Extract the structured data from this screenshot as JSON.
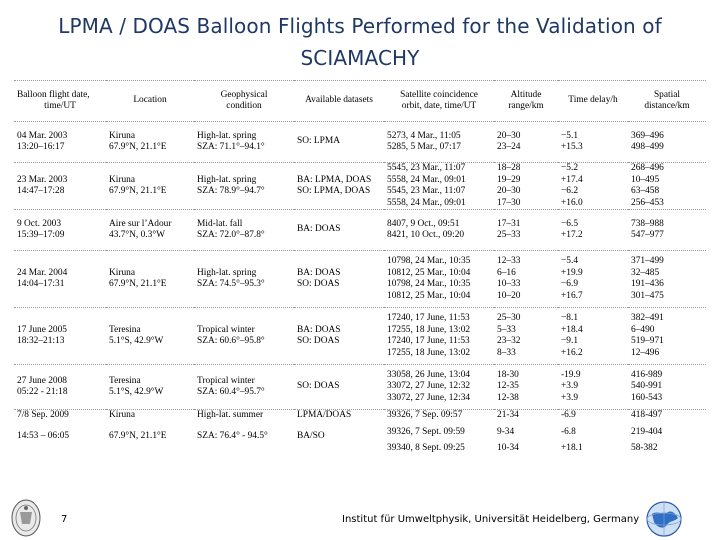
{
  "title_line1": "LPMA / DOAS Balloon Flights Performed for the Validation of",
  "title_line2": "SCIAMACHY",
  "headers": [
    [
      "Balloon flight date,",
      "time/UT"
    ],
    [
      "Location"
    ],
    [
      "Geophysical",
      "condition"
    ],
    [
      "Available datasets"
    ],
    [
      "Satellite coincidence",
      "orbit, date, time/UT"
    ],
    [
      "Altitude",
      "range/km"
    ],
    [
      "Time delay/h"
    ],
    [
      "Spatial",
      "distance/km"
    ]
  ],
  "rows": [
    {
      "date": [
        "04 Mar. 2003",
        "13:20–16:17"
      ],
      "location": [
        "Kiruna",
        "67.9°N, 21.1°E"
      ],
      "condition": [
        "High-lat. spring",
        "SZA: 71.1°–94.1°"
      ],
      "datasets": [
        "SO: LPMA"
      ],
      "coincidence": [
        "5273, 4 Mar., 11:05",
        "5285, 5 Mar., 07:17"
      ],
      "altitude": [
        "20–30",
        "23–24"
      ],
      "delay": [
        "−5.1",
        "+15.3"
      ],
      "distance": [
        "369–496",
        "498–499"
      ]
    },
    {
      "date": [
        "23 Mar. 2003",
        "14:47–17:28"
      ],
      "location": [
        "Kiruna",
        "67.9°N, 21.1°E"
      ],
      "condition": [
        "High-lat. spring",
        "SZA: 78.9°–94.7°"
      ],
      "datasets": [
        "BA: LPMA, DOAS",
        "SO: LPMA, DOAS"
      ],
      "coincidence": [
        "5545, 23 Mar., 11:07",
        "5558, 24 Mar., 09:01",
        "5545, 23 Mar., 11:07",
        "5558, 24 Mar., 09:01"
      ],
      "altitude": [
        "18–28",
        "19–29",
        "20–30",
        "17–30"
      ],
      "delay": [
        "−5.2",
        "+17.4",
        "−6.2",
        "+16.0"
      ],
      "distance": [
        "268–496",
        "10–495",
        "63–458",
        "256–453"
      ]
    },
    {
      "date": [
        "9 Oct. 2003",
        "15:39–17:09"
      ],
      "location": [
        "Aire sur l’Adour",
        "43.7°N, 0.3°W"
      ],
      "condition": [
        "Mid-lat. fall",
        "SZA: 72.0°–87.8°"
      ],
      "datasets": [
        "BA: DOAS"
      ],
      "coincidence": [
        "8407, 9 Oct., 09:51",
        "8421, 10 Oct., 09:20"
      ],
      "altitude": [
        "17–31",
        "25–33"
      ],
      "delay": [
        "−6.5",
        "+17.2"
      ],
      "distance": [
        "738–988",
        "547–977"
      ]
    },
    {
      "date": [
        "24 Mar. 2004",
        "14:04–17:31"
      ],
      "location": [
        "Kiruna",
        "67.9°N, 21.1°E"
      ],
      "condition": [
        "High-lat. spring",
        "SZA: 74.5°–95.3°"
      ],
      "datasets": [
        "BA: DOAS",
        "SO: DOAS"
      ],
      "coincidence": [
        "10798, 24 Mar., 10:35",
        "10812, 25 Mar., 10:04",
        "10798, 24 Mar., 10:35",
        "10812, 25 Mar., 10:04"
      ],
      "altitude": [
        "12–33",
        "6–16",
        "10–33",
        "10–20"
      ],
      "delay": [
        "−5.4",
        "+19.9",
        "−6.9",
        "+16.7"
      ],
      "distance": [
        "371–499",
        "32–485",
        "191–436",
        "301–475"
      ]
    },
    {
      "date": [
        "17 June 2005",
        "18:32–21:13"
      ],
      "location": [
        "Teresina",
        "5.1°S, 42.9°W"
      ],
      "condition": [
        "Tropical winter",
        "SZA: 60.6°–95.8°"
      ],
      "datasets": [
        "BA: DOAS",
        "SO: DOAS"
      ],
      "coincidence": [
        "17240, 17 June, 11:53",
        "17255, 18 June, 13:02",
        "17240, 17 June, 11:53",
        "17255, 18 June, 13:02"
      ],
      "altitude": [
        "25–30",
        "5–33",
        "23–32",
        "8–33"
      ],
      "delay": [
        "−8.1",
        "+18.4",
        "−9.1",
        "+16.2"
      ],
      "distance": [
        "382–491",
        "6–490",
        "519–971",
        "12–496"
      ]
    },
    {
      "date": [
        "27 June 2008",
        "05:22 - 21:18"
      ],
      "location": [
        "Teresina",
        "5.1°S, 42.9°W"
      ],
      "condition": [
        "Tropical winter",
        "SZA: 60.4°–95.7°"
      ],
      "datasets": [
        "SO: DOAS"
      ],
      "coincidence": [
        "33058, 26 June, 13:04",
        "33072, 27 June, 12:32",
        "33072, 27 June, 12:34"
      ],
      "altitude": [
        "18-30",
        "12-35",
        "12-38"
      ],
      "delay": [
        "-19.9",
        "+3.9",
        "+3.9"
      ],
      "distance": [
        "416-989",
        "540-991",
        "160-543"
      ]
    },
    {
      "date": [
        "7/8 Sep. 2009",
        "14:53 – 06:05"
      ],
      "location": [
        "Kiruna",
        "67.9°N, 21.1°E"
      ],
      "condition": [
        "High-lat. summer",
        "SZA: 76.4° - 94.5°"
      ],
      "datasets": [
        "LPMA/DOAS",
        "BA/SO"
      ],
      "coincidence": [
        "39326, 7 Sep. 09:57",
        "39326, 7 Sept. 09:59",
        "39340, 8 Sept. 09:25"
      ],
      "altitude": [
        "21-34",
        "9-34",
        "10-34"
      ],
      "delay": [
        "-6.9",
        "-6.8",
        "+18.1"
      ],
      "distance": [
        "418-497",
        "219-404",
        "58-382"
      ]
    }
  ],
  "footer": {
    "page_number": "7",
    "institute": "Institut für Umweltphysik, Universität Heidelberg, Germany"
  },
  "colors": {
    "title": "#1f3864",
    "grid": "#9a9a9a"
  },
  "icons": {
    "left_logo": "university-seal-icon",
    "right_logo": "globe-icon"
  }
}
